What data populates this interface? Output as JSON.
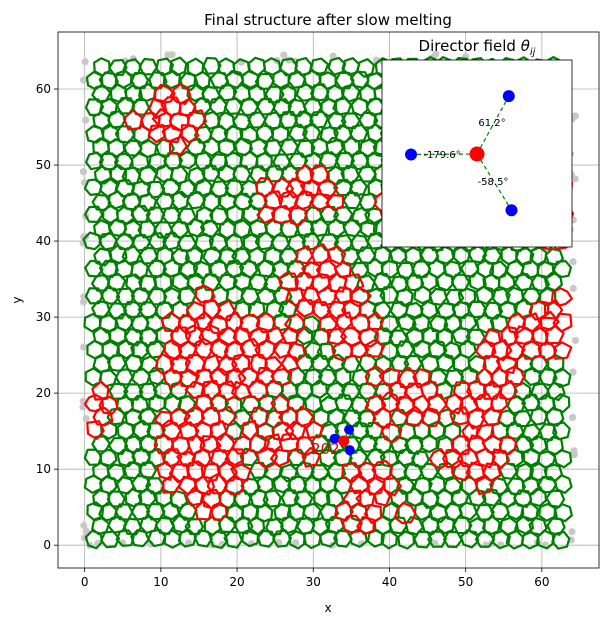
{
  "chart_data": [
    {
      "type": "scatter",
      "title": "Final structure after slow melting",
      "xlabel": "x",
      "ylabel": "y",
      "xlim": [
        -3.5,
        67.5
      ],
      "ylim": [
        -3.0,
        67.5
      ],
      "xticks": [
        0,
        10,
        20,
        30,
        40,
        50,
        60
      ],
      "yticks": [
        0,
        10,
        20,
        30,
        40,
        50,
        60
      ],
      "grid": true,
      "description_series": [
        {
          "name": "hexagonal cells",
          "color": "#008000"
        },
        {
          "name": "defect cells",
          "color": "#ff0000"
        },
        {
          "name": "particles",
          "color": "#c8c8c8"
        }
      ],
      "lattice_extent": {
        "x": [
          0,
          64
        ],
        "y": [
          0,
          64
        ]
      },
      "highlight": {
        "label": "202",
        "x": 34.0,
        "y": 13.7,
        "neighbors": [
          [
            34.7,
            15.2
          ],
          [
            32.8,
            14.0
          ],
          [
            34.8,
            12.5
          ]
        ]
      }
    },
    {
      "type": "scatter",
      "title": "Director field θ_ij",
      "title_main": "Director field ",
      "title_symbol": "θ",
      "title_sub": "ij",
      "center": {
        "x": 0,
        "y": 0,
        "color": "#ff0000"
      },
      "neighbors": [
        {
          "angle_label": "61.2°",
          "angle": 61.2,
          "color": "#0000ff"
        },
        {
          "angle_label": "-179.6°",
          "angle": -179.6,
          "color": "#0000ff"
        },
        {
          "angle_label": "-58.5°",
          "angle": -58.5,
          "color": "#0000ff"
        }
      ],
      "line_color": "#008000"
    }
  ],
  "colors": {
    "green": "#008000",
    "red": "#ff0000",
    "blue": "#0000ff",
    "grey": "#c8c8c8",
    "grid": "#b0b0b0"
  }
}
